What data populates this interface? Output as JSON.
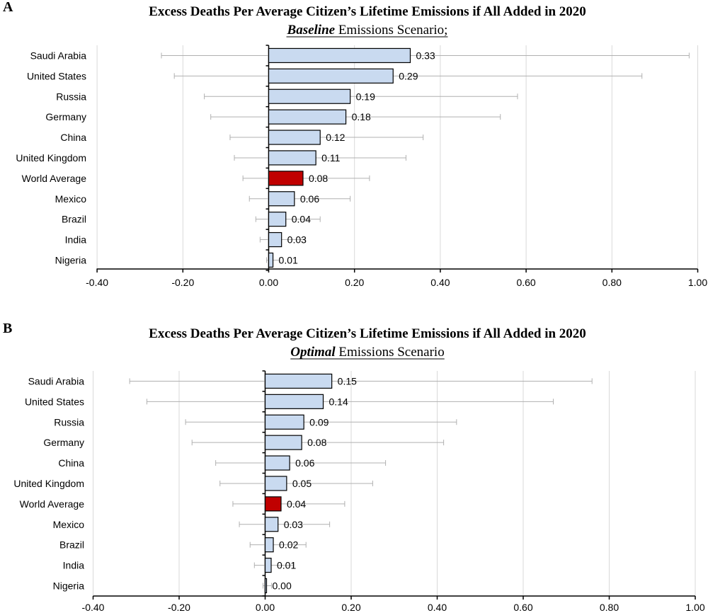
{
  "chart_data": [
    {
      "type": "bar",
      "orientation": "horizontal",
      "panel_label": "A",
      "title": "Excess Deaths Per Average Citizen’s Lifetime Emissions if All Added in 2020",
      "subtitle_emph": "Baseline",
      "subtitle_rest": " Emissions Scenario;",
      "categories": [
        "Saudi Arabia",
        "United States",
        "Russia",
        "Germany",
        "China",
        "United Kingdom",
        "World Average",
        "Mexico",
        "Brazil",
        "India",
        "Nigeria"
      ],
      "values": [
        0.33,
        0.29,
        0.19,
        0.18,
        0.12,
        0.11,
        0.08,
        0.06,
        0.04,
        0.03,
        0.01
      ],
      "value_labels": [
        "0.33",
        "0.29",
        "0.19",
        "0.18",
        "0.12",
        "0.11",
        "0.08",
        "0.06",
        "0.04",
        "0.03",
        "0.01"
      ],
      "error_low": [
        -0.25,
        -0.22,
        -0.15,
        -0.135,
        -0.09,
        -0.08,
        -0.06,
        -0.045,
        -0.03,
        -0.02,
        -0.005
      ],
      "error_high": [
        0.98,
        0.87,
        0.58,
        0.54,
        0.36,
        0.32,
        0.235,
        0.19,
        0.12,
        0.085,
        0.025
      ],
      "highlight_category": "World Average",
      "xlim": [
        -0.4,
        1.0
      ],
      "xticks": [
        -0.4,
        -0.2,
        0.0,
        0.2,
        0.4,
        0.6,
        0.8,
        1.0
      ],
      "xtick_labels": [
        "-0.40",
        "-0.20",
        "0.00",
        "0.20",
        "0.40",
        "0.60",
        "0.80",
        "1.00"
      ],
      "grid": "vertical"
    },
    {
      "type": "bar",
      "orientation": "horizontal",
      "panel_label": "B",
      "title": "Excess Deaths Per Average Citizen’s Lifetime Emissions if All Added in 2020",
      "subtitle_emph": "Optimal",
      "subtitle_rest": " Emissions Scenario",
      "categories": [
        "Saudi Arabia",
        "United States",
        "Russia",
        "Germany",
        "China",
        "United Kingdom",
        "World Average",
        "Mexico",
        "Brazil",
        "India",
        "Nigeria"
      ],
      "values": [
        0.155,
        0.135,
        0.09,
        0.085,
        0.057,
        0.05,
        0.037,
        0.03,
        0.019,
        0.014,
        0.003
      ],
      "value_labels": [
        "0.15",
        "0.14",
        "0.09",
        "0.08",
        "0.06",
        "0.05",
        "0.04",
        "0.03",
        "0.02",
        "0.01",
        "0.00"
      ],
      "error_low": [
        -0.315,
        -0.275,
        -0.185,
        -0.17,
        -0.115,
        -0.105,
        -0.075,
        -0.06,
        -0.035,
        -0.025,
        -0.005
      ],
      "error_high": [
        0.76,
        0.67,
        0.445,
        0.415,
        0.28,
        0.25,
        0.185,
        0.15,
        0.095,
        0.065,
        0.015
      ],
      "highlight_category": "World Average",
      "xlim": [
        -0.4,
        1.0
      ],
      "xticks": [
        -0.4,
        -0.2,
        0.0,
        0.2,
        0.4,
        0.6,
        0.8,
        1.0
      ],
      "xtick_labels": [
        "-0.40",
        "-0.20",
        "0.00",
        "0.20",
        "0.40",
        "0.60",
        "0.80",
        "1.00"
      ],
      "grid": "vertical"
    }
  ],
  "colors": {
    "bar_fill": "#c9daf0",
    "bar_highlight": "#c00000",
    "bar_stroke": "#000000",
    "grid": "#d9d9d9",
    "error_bar": "#b0b0b0"
  }
}
